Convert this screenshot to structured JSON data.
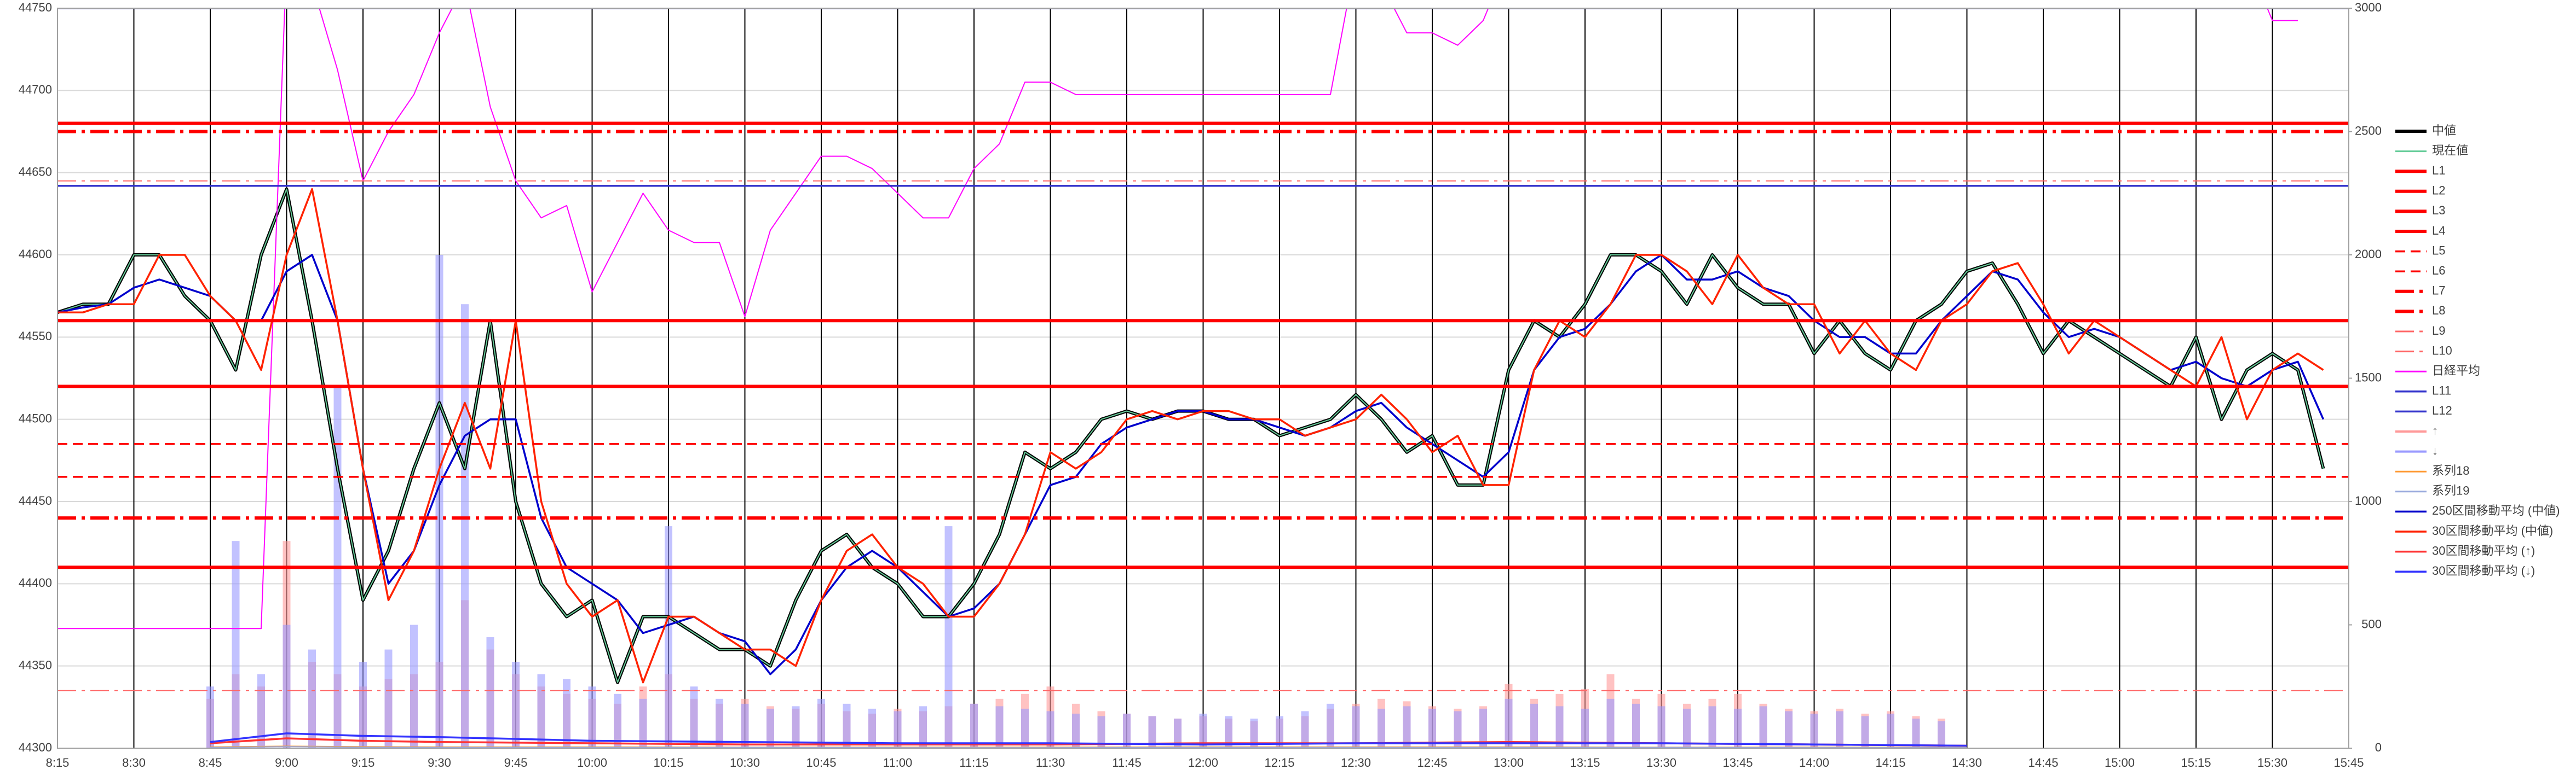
{
  "chart_data": {
    "type": "line",
    "x": [
      "8:15",
      "8:20",
      "8:25",
      "8:30",
      "8:35",
      "8:40",
      "8:45",
      "8:50",
      "8:55",
      "9:00",
      "9:05",
      "9:10",
      "9:15",
      "9:20",
      "9:25",
      "9:30",
      "9:35",
      "9:40",
      "9:45",
      "9:50",
      "9:55",
      "10:00",
      "10:05",
      "10:10",
      "10:15",
      "10:20",
      "10:25",
      "10:30",
      "10:35",
      "10:40",
      "10:45",
      "10:50",
      "10:55",
      "11:00",
      "11:05",
      "11:10",
      "11:15",
      "11:20",
      "11:25",
      "11:30",
      "11:35",
      "11:40",
      "11:45",
      "11:50",
      "11:55",
      "12:00",
      "12:05",
      "12:10",
      "12:15",
      "12:20",
      "12:25",
      "12:30",
      "12:35",
      "12:40",
      "12:45",
      "12:50",
      "12:55",
      "13:00",
      "13:05",
      "13:10",
      "13:15",
      "13:20",
      "13:25",
      "13:30",
      "13:35",
      "13:40",
      "13:45",
      "13:50",
      "13:55",
      "14:00",
      "14:05",
      "14:10",
      "14:15",
      "14:20",
      "14:25",
      "14:30",
      "14:35",
      "14:40",
      "14:45",
      "14:50",
      "14:55",
      "15:00",
      "15:05",
      "15:10",
      "15:15",
      "15:20",
      "15:25",
      "15:30",
      "15:35",
      "15:40"
    ],
    "xlim": [
      "8:15",
      "15:45"
    ],
    "xticks": [
      "8:15",
      "8:30",
      "8:45",
      "9:00",
      "9:15",
      "9:30",
      "9:45",
      "10:00",
      "10:15",
      "10:30",
      "10:45",
      "11:00",
      "11:15",
      "11:30",
      "11:45",
      "12:00",
      "12:15",
      "12:30",
      "12:45",
      "13:00",
      "13:15",
      "13:30",
      "13:45",
      "14:00",
      "14:15",
      "14:30",
      "14:45",
      "15:00",
      "15:15",
      "15:30",
      "15:45"
    ],
    "ylim": [
      44300,
      44750
    ],
    "yticks": [
      44300,
      44350,
      44400,
      44450,
      44500,
      44550,
      44600,
      44650,
      44700,
      44750
    ],
    "y2lim": [
      0,
      3000
    ],
    "y2ticks": [
      0,
      500,
      1000,
      1500,
      2000,
      2500,
      3000
    ],
    "grid": true,
    "legend": "right",
    "series": [
      {
        "name": "中値",
        "kind": "line",
        "color": "#000000",
        "weight": "thick",
        "values": [
          44565,
          44570,
          44570,
          44600,
          44600,
          44575,
          44560,
          44530,
          44600,
          44640,
          44560,
          44470,
          44390,
          44420,
          44470,
          44510,
          44470,
          44560,
          44450,
          44400,
          44380,
          44390,
          44340,
          44380,
          44380,
          44370,
          44360,
          44360,
          44350,
          44390,
          44420,
          44430,
          44410,
          44400,
          44380,
          44380,
          44400,
          44430,
          44480,
          44470,
          44480,
          44500,
          44505,
          44500,
          44505,
          44505,
          44500,
          44500,
          44490,
          44495,
          44500,
          44515,
          44500,
          44480,
          44490,
          44460,
          44460,
          44530,
          44560,
          44550,
          44570,
          44600,
          44600,
          44590,
          44570,
          44600,
          44580,
          44570,
          44570,
          44540,
          44560,
          44540,
          44530,
          44560,
          44570,
          44590,
          44595,
          44570,
          44540,
          44560,
          44550,
          44540,
          44530,
          44520,
          44550,
          44500,
          44530,
          44540,
          44530,
          44470
        ]
      },
      {
        "name": "現在値",
        "kind": "line",
        "color": "#66cc99",
        "weight": "thin",
        "values": [
          44565,
          44570,
          44570,
          44600,
          44600,
          44575,
          44560,
          44530,
          44600,
          44640,
          44560,
          44470,
          44390,
          44420,
          44470,
          44510,
          44470,
          44560,
          44450,
          44400,
          44380,
          44390,
          44340,
          44380,
          44380,
          44370,
          44360,
          44360,
          44350,
          44390,
          44420,
          44430,
          44410,
          44400,
          44380,
          44380,
          44400,
          44430,
          44480,
          44470,
          44480,
          44500,
          44505,
          44500,
          44505,
          44505,
          44500,
          44500,
          44490,
          44495,
          44500,
          44515,
          44500,
          44480,
          44490,
          44460,
          44460,
          44530,
          44560,
          44550,
          44570,
          44600,
          44600,
          44590,
          44570,
          44600,
          44580,
          44570,
          44570,
          44540,
          44560,
          44540,
          44530,
          44560,
          44570,
          44590,
          44595,
          44570,
          44540,
          44560,
          44550,
          44540,
          44530,
          44520,
          44550,
          44500,
          44530,
          44540,
          44530,
          44470
        ]
      },
      {
        "name": "L1",
        "kind": "level",
        "color": "#ff0000",
        "dash": "solid",
        "weight": "thick",
        "value": 44680
      },
      {
        "name": "L2",
        "kind": "level",
        "color": "#ff0000",
        "dash": "solid",
        "weight": "thick",
        "value": 44560
      },
      {
        "name": "L3",
        "kind": "level",
        "color": "#ff0000",
        "dash": "solid",
        "weight": "thick",
        "value": 44520
      },
      {
        "name": "L4",
        "kind": "level",
        "color": "#ff0000",
        "dash": "solid",
        "weight": "thick",
        "value": 44410
      },
      {
        "name": "L5",
        "kind": "level",
        "color": "#ff0000",
        "dash": "dash",
        "weight": "normal",
        "value": 44485
      },
      {
        "name": "L6",
        "kind": "level",
        "color": "#ff0000",
        "dash": "dash",
        "weight": "normal",
        "value": 44465
      },
      {
        "name": "L7",
        "kind": "level",
        "color": "#ff0000",
        "dash": "dash-dot",
        "weight": "thick",
        "value": 44675
      },
      {
        "name": "L8",
        "kind": "level",
        "color": "#ff0000",
        "dash": "dash-dot",
        "weight": "thick",
        "value": 44440
      },
      {
        "name": "L9",
        "kind": "level",
        "color": "#ff6666",
        "dash": "dash-dot",
        "weight": "thin",
        "value": 44645
      },
      {
        "name": "L10",
        "kind": "level",
        "color": "#ff6666",
        "dash": "dash-dot",
        "weight": "thin",
        "value": 44335
      },
      {
        "name": "日経平均",
        "kind": "line",
        "axis": "y2",
        "color": "#ff00ff",
        "weight": "thin",
        "values": [
          485,
          485,
          485,
          485,
          485,
          485,
          485,
          485,
          485,
          3200,
          3100,
          2750,
          2300,
          2500,
          2650,
          2900,
          3100,
          2600,
          2300,
          2150,
          2200,
          1850,
          2050,
          2250,
          2100,
          2050,
          2050,
          1750,
          2100,
          2250,
          2400,
          2400,
          2350,
          2250,
          2150,
          2150,
          2350,
          2450,
          2700,
          2700,
          2650,
          2650,
          2650,
          2650,
          2650,
          2650,
          2650,
          2650,
          2650,
          2650,
          2650,
          3200,
          3100,
          2900,
          2900,
          2850,
          2950,
          3200,
          3200,
          3200,
          3200,
          3200,
          3200,
          3200,
          3200,
          3200,
          3200,
          3200,
          3200,
          3200,
          3200,
          3200,
          3200,
          3200,
          3200,
          3200,
          3200,
          3200,
          3200,
          3200,
          3200,
          3200,
          3200,
          3200,
          3200,
          3200,
          3200,
          2950,
          2950,
          null
        ]
      },
      {
        "name": "L11",
        "kind": "level",
        "color": "#3333cc",
        "dash": "solid",
        "weight": "normal",
        "value": 44642
      },
      {
        "name": "L12",
        "kind": "level",
        "color": "#3333cc",
        "dash": "solid",
        "weight": "normal",
        "value": 44750
      },
      {
        "name": "↑",
        "kind": "bar",
        "axis": "y2",
        "color": "#ff9999",
        "values": [
          null,
          null,
          null,
          null,
          null,
          null,
          200,
          300,
          250,
          840,
          350,
          300,
          250,
          280,
          300,
          350,
          600,
          400,
          300,
          250,
          220,
          200,
          180,
          250,
          300,
          200,
          180,
          200,
          170,
          160,
          180,
          150,
          140,
          160,
          150,
          170,
          180,
          200,
          220,
          250,
          180,
          150,
          140,
          130,
          120,
          130,
          120,
          110,
          120,
          130,
          160,
          180,
          200,
          190,
          170,
          160,
          170,
          260,
          200,
          220,
          240,
          300,
          200,
          220,
          180,
          200,
          220,
          180,
          160,
          150,
          160,
          140,
          150,
          130,
          120,
          null,
          null,
          null,
          null,
          null,
          null,
          null,
          null,
          null,
          null,
          null,
          null,
          null,
          null,
          null
        ]
      },
      {
        "name": "↓",
        "kind": "bar",
        "axis": "y2",
        "color": "#9999ff",
        "values": [
          null,
          null,
          null,
          null,
          null,
          null,
          250,
          840,
          300,
          500,
          400,
          1470,
          350,
          400,
          500,
          2000,
          1800,
          450,
          350,
          300,
          280,
          250,
          220,
          200,
          900,
          250,
          200,
          180,
          160,
          170,
          200,
          180,
          160,
          150,
          170,
          900,
          180,
          170,
          160,
          150,
          140,
          130,
          140,
          130,
          120,
          140,
          130,
          120,
          130,
          150,
          180,
          170,
          160,
          170,
          160,
          150,
          160,
          200,
          180,
          170,
          160,
          200,
          180,
          170,
          160,
          170,
          160,
          170,
          150,
          140,
          150,
          130,
          140,
          120,
          110,
          null,
          null,
          null,
          null,
          null,
          null,
          null,
          null,
          null,
          null,
          null,
          null,
          null,
          null,
          null
        ]
      },
      {
        "name": "系列18",
        "kind": "line",
        "axis": "y2",
        "color": "#ff9933",
        "weight": "thin",
        "x": [
          "8:45",
          "9:00",
          "9:15",
          "9:30",
          "10:00",
          "10:30",
          "11:00",
          "11:30",
          "12:00",
          "12:30",
          "13:00",
          "13:30",
          "14:00",
          "14:30"
        ],
        "values": [
          5,
          8,
          6,
          5,
          5,
          4,
          4,
          4,
          5,
          5,
          5,
          4,
          4,
          3
        ]
      },
      {
        "name": "系列19",
        "kind": "line",
        "axis": "y2",
        "color": "#99aadd",
        "weight": "thin",
        "x": [
          "8:45",
          "9:00",
          "9:15",
          "9:30",
          "10:00",
          "10:30",
          "11:00",
          "11:30",
          "12:00",
          "12:30",
          "13:00",
          "13:30",
          "14:00",
          "14:30"
        ],
        "values": [
          3,
          6,
          4,
          3,
          3,
          3,
          2,
          2,
          3,
          3,
          3,
          3,
          2,
          2
        ]
      },
      {
        "name": "250区間移動平均 (中値)",
        "kind": "line",
        "color": "#0000cc",
        "weight": "normal",
        "values": [
          44565,
          44568,
          44570,
          44580,
          44585,
          44580,
          44575,
          44560,
          44560,
          44590,
          44600,
          44560,
          44470,
          44400,
          44420,
          44460,
          44490,
          44500,
          44500,
          44440,
          44410,
          44400,
          44390,
          44370,
          44375,
          44380,
          44370,
          44365,
          44345,
          44360,
          44390,
          44410,
          44420,
          44410,
          44395,
          44380,
          44385,
          44400,
          44430,
          44460,
          44465,
          44485,
          44495,
          44500,
          44505,
          44505,
          44500,
          44500,
          44495,
          44490,
          44495,
          44505,
          44510,
          44495,
          44485,
          44475,
          44465,
          44480,
          44530,
          44550,
          44555,
          44570,
          44590,
          44600,
          44585,
          44585,
          44590,
          44580,
          44575,
          44560,
          44550,
          44550,
          44540,
          44540,
          44560,
          44575,
          44590,
          44585,
          44565,
          44550,
          44555,
          44550,
          44540,
          44530,
          44535,
          44525,
          44520,
          44530,
          44535,
          44500
        ]
      },
      {
        "name": "30区間移動平均 (中値)",
        "kind": "line",
        "color": "#ff2200",
        "weight": "normal",
        "values": [
          44565,
          44565,
          44570,
          44570,
          44600,
          44600,
          44575,
          44560,
          44530,
          44600,
          44640,
          44560,
          44470,
          44390,
          44420,
          44470,
          44510,
          44470,
          44560,
          44450,
          44400,
          44380,
          44390,
          44340,
          44380,
          44380,
          44370,
          44360,
          44360,
          44350,
          44390,
          44420,
          44430,
          44410,
          44400,
          44380,
          44380,
          44400,
          44430,
          44480,
          44470,
          44480,
          44500,
          44505,
          44500,
          44505,
          44505,
          44500,
          44500,
          44490,
          44495,
          44500,
          44515,
          44500,
          44480,
          44490,
          44460,
          44460,
          44530,
          44560,
          44550,
          44570,
          44600,
          44600,
          44590,
          44570,
          44600,
          44580,
          44570,
          44570,
          44540,
          44560,
          44540,
          44530,
          44560,
          44570,
          44590,
          44595,
          44570,
          44540,
          44560,
          44550,
          44540,
          44530,
          44520,
          44550,
          44500,
          44530,
          44540,
          44530
        ]
      },
      {
        "name": "30区間移動平均 (↑)",
        "kind": "line",
        "axis": "y2",
        "color": "#ff3333",
        "weight": "normal",
        "x": [
          "8:45",
          "9:00",
          "9:15",
          "9:30",
          "10:00",
          "10:30",
          "11:00",
          "11:30",
          "12:00",
          "12:30",
          "13:00",
          "13:30",
          "14:00",
          "14:30"
        ],
        "values": [
          20,
          40,
          30,
          25,
          20,
          15,
          15,
          15,
          20,
          20,
          25,
          20,
          15,
          10
        ]
      },
      {
        "name": "30区間移動平均 (↓)",
        "kind": "line",
        "axis": "y2",
        "color": "#3333ff",
        "weight": "normal",
        "x": [
          "8:45",
          "9:00",
          "9:15",
          "9:30",
          "10:00",
          "10:30",
          "11:00",
          "11:30",
          "12:00",
          "12:30",
          "13:00",
          "13:30",
          "14:00",
          "14:30"
        ],
        "values": [
          25,
          60,
          50,
          45,
          30,
          25,
          20,
          20,
          15,
          20,
          20,
          20,
          15,
          10
        ]
      }
    ]
  }
}
